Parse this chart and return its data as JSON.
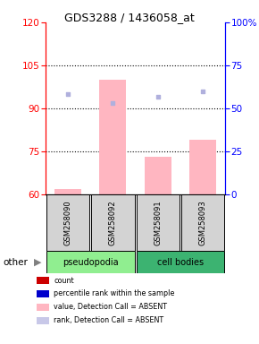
{
  "title": "GDS3288 / 1436058_at",
  "categories": [
    "GSM258090",
    "GSM258092",
    "GSM258091",
    "GSM258093"
  ],
  "ylim_left": [
    60,
    120
  ],
  "ylim_right": [
    0,
    100
  ],
  "yticks_left": [
    60,
    75,
    90,
    105,
    120
  ],
  "yticks_right": [
    0,
    25,
    50,
    75,
    100
  ],
  "ytick_labels_right": [
    "0",
    "25",
    "50",
    "75",
    "100%"
  ],
  "bar_values": [
    62,
    100,
    73,
    79
  ],
  "bar_color": "#ffb6c1",
  "dot_values": [
    95,
    92,
    94,
    96
  ],
  "dot_color": "#b0b0dd",
  "dot_size": 12,
  "grid_yticks": [
    75,
    90,
    105
  ],
  "bg_color_samples": "#d3d3d3",
  "bar_width": 0.6,
  "group_colors": [
    "#90ee90",
    "#3cb371"
  ],
  "group_labels": [
    "pseudopodia",
    "cell bodies"
  ],
  "legend_items": [
    [
      "#cc0000",
      "count"
    ],
    [
      "#0000cc",
      "percentile rank within the sample"
    ],
    [
      "#ffb6c1",
      "value, Detection Call = ABSENT"
    ],
    [
      "#c8c8e8",
      "rank, Detection Call = ABSENT"
    ]
  ]
}
